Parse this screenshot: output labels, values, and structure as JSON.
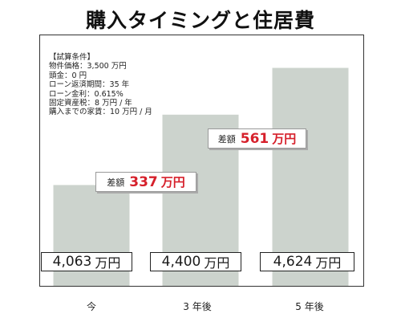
{
  "page": {
    "title": "購入タイミングと住居費"
  },
  "conditions": {
    "heading": "【試算条件】",
    "lines": [
      "物件価格：3,500 万円",
      "頭金：0 円",
      "ローン返済期間：35 年",
      "ローン金利：0.615%",
      "固定資産税：8 万円 / 年",
      "購入までの家賃：10 万円 / 月"
    ]
  },
  "chart_data": {
    "type": "bar",
    "categories": [
      "今",
      "3 年後",
      "5 年後"
    ],
    "values": [
      4063,
      4400,
      4624
    ],
    "value_labels": [
      "4,063",
      "4,400",
      "4,624"
    ],
    "unit": "万円",
    "bar_color": "#ccd3cd",
    "ylim": [
      3580,
      4780
    ],
    "grid": false,
    "differences": [
      {
        "label": "差額",
        "value": "337",
        "unit": "万円"
      },
      {
        "label": "差額",
        "value": "561",
        "unit": "万円"
      }
    ],
    "accent_color": "#d6202b"
  }
}
